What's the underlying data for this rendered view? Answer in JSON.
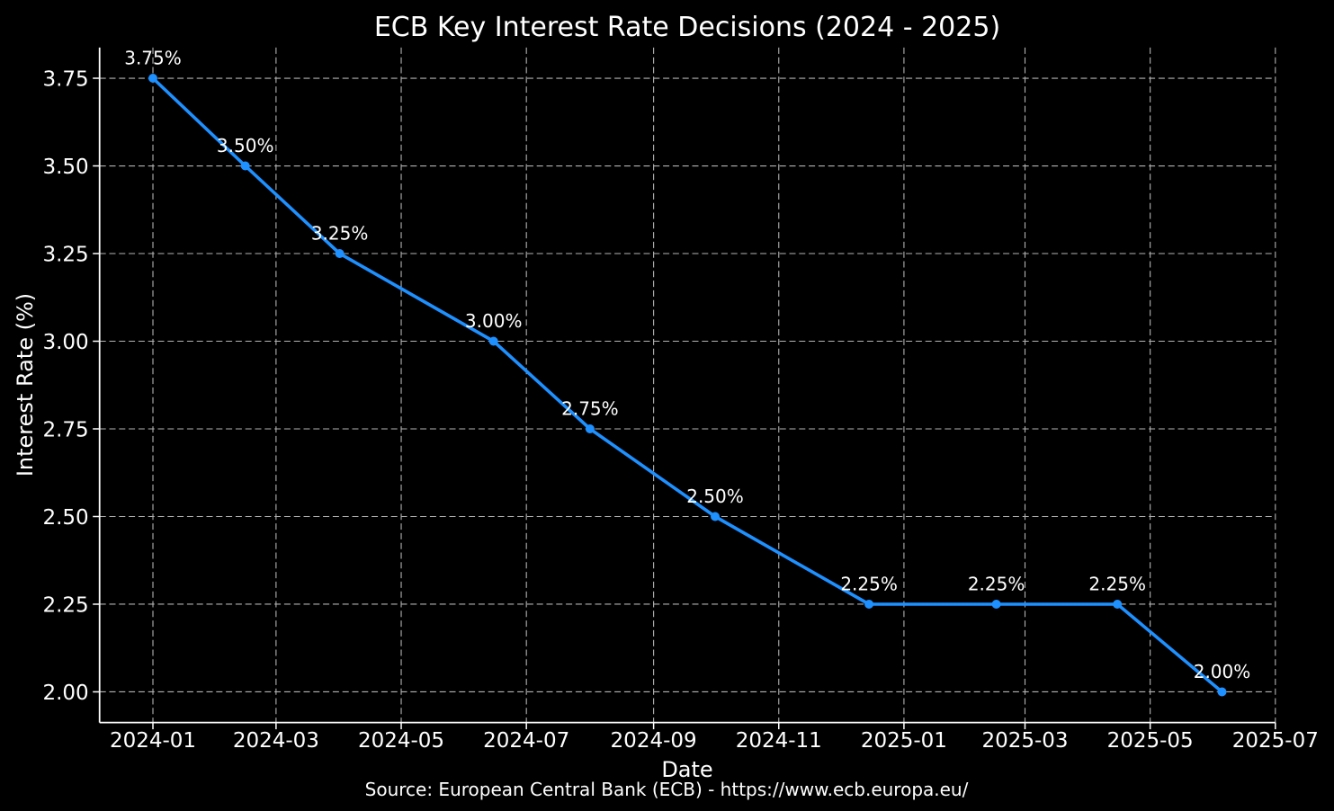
{
  "chart_data": {
    "type": "line",
    "title": "ECB Key Interest Rate Decisions (2024 - 2025)",
    "xlabel": "Date",
    "ylabel": "Interest Rate (%)",
    "source_note": "Source: European Central Bank (ECB) - https://www.ecb.europa.eu/",
    "x": [
      "2024-01-01",
      "2024-02-15",
      "2024-04-01",
      "2024-06-15",
      "2024-08-01",
      "2024-10-01",
      "2024-12-15",
      "2025-02-15",
      "2025-04-15",
      "2025-06-05"
    ],
    "y": [
      3.75,
      3.5,
      3.25,
      3.0,
      2.75,
      2.5,
      2.25,
      2.25,
      2.25,
      2.0
    ],
    "point_labels": [
      "3.75%",
      "3.50%",
      "3.25%",
      "3.00%",
      "2.75%",
      "2.50%",
      "2.25%",
      "2.25%",
      "2.25%",
      "2.00%"
    ],
    "x_ticks": [
      {
        "value": "2024-01-01",
        "label": "2024-01"
      },
      {
        "value": "2024-03-01",
        "label": "2024-03"
      },
      {
        "value": "2024-05-01",
        "label": "2024-05"
      },
      {
        "value": "2024-07-01",
        "label": "2024-07"
      },
      {
        "value": "2024-09-01",
        "label": "2024-09"
      },
      {
        "value": "2024-11-01",
        "label": "2024-11"
      },
      {
        "value": "2025-01-01",
        "label": "2025-01"
      },
      {
        "value": "2025-03-01",
        "label": "2025-03"
      },
      {
        "value": "2025-05-01",
        "label": "2025-05"
      },
      {
        "value": "2025-07-01",
        "label": "2025-07"
      }
    ],
    "y_ticks": [
      {
        "value": 2.0,
        "label": "2.00"
      },
      {
        "value": 2.25,
        "label": "2.25"
      },
      {
        "value": 2.5,
        "label": "2.50"
      },
      {
        "value": 2.75,
        "label": "2.75"
      },
      {
        "value": 3.0,
        "label": "3.00"
      },
      {
        "value": 3.25,
        "label": "3.25"
      },
      {
        "value": 3.5,
        "label": "3.50"
      },
      {
        "value": 3.75,
        "label": "3.75"
      }
    ],
    "xlim": [
      "2023-12-06",
      "2025-07-01"
    ],
    "ylim": [
      1.9125,
      3.8375
    ],
    "grid": true,
    "grid_style": "dashed",
    "legend": "none",
    "marker": "circle",
    "colors": {
      "background": "#000000",
      "text": "#FFFFFF",
      "grid": "#B3B3B3",
      "line": "#1E90FF",
      "marker": "#1E90FF"
    }
  }
}
